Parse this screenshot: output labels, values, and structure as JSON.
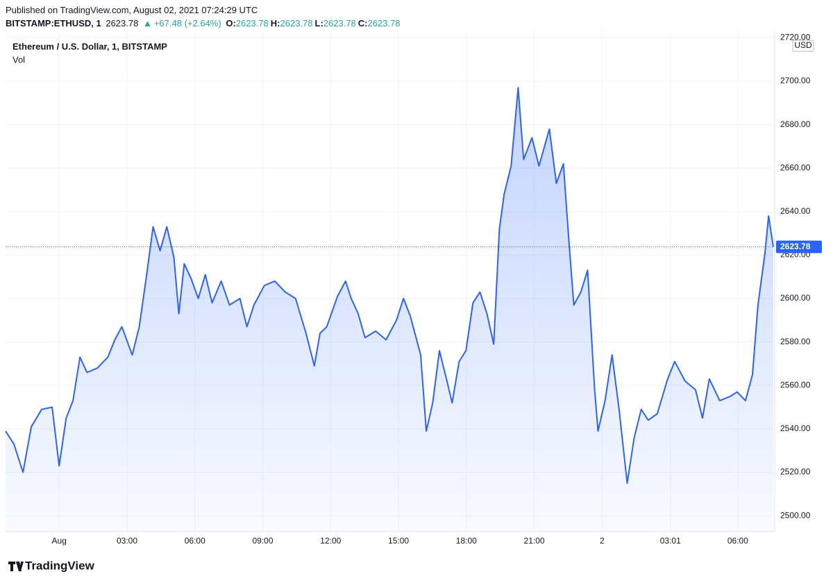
{
  "header": {
    "published": "Published on TradingView.com, August 02, 2021 07:24:29 UTC",
    "symbol": "BITSTAMP:ETHUSD, 1",
    "last": 2623.78,
    "change": "+67.48 (+2.64%)",
    "ohlc": [
      {
        "label": "O:",
        "value": 2623.78
      },
      {
        "label": "H:",
        "value": 2623.78
      },
      {
        "label": "L:",
        "value": 2623.78
      },
      {
        "label": "C:",
        "value": 2623.78
      }
    ]
  },
  "footer": {
    "brand": "TradingView"
  },
  "chart_data": {
    "type": "area",
    "legend": [
      "Ethereum / U.S. Dollar, 1, BITSTAMP",
      "Vol"
    ],
    "currency": "USD",
    "color": "#2962ff",
    "price_line": {
      "value": 2623.78,
      "label": "2623.78"
    },
    "x": [
      -2.37,
      -2.0,
      -1.6,
      -1.23,
      -0.77,
      -0.31,
      0,
      0.31,
      0.61,
      0.92,
      1.23,
      1.69,
      2.15,
      2.46,
      2.77,
      3.23,
      3.54,
      3.84,
      4.15,
      4.46,
      4.76,
      5.07,
      5.29,
      5.53,
      5.84,
      6.15,
      6.46,
      6.76,
      7.16,
      7.53,
      7.99,
      8.3,
      8.61,
      9.07,
      9.53,
      9.99,
      10.45,
      10.91,
      11.28,
      11.53,
      11.83,
      12.3,
      12.66,
      12.91,
      13.22,
      13.52,
      13.99,
      14.45,
      14.91,
      15.22,
      15.52,
      15.98,
      16.23,
      16.51,
      16.81,
      17.12,
      17.37,
      17.68,
      17.98,
      18.29,
      18.6,
      18.91,
      19.21,
      19.46,
      19.67,
      19.98,
      20.29,
      20.53,
      20.9,
      21.21,
      21.67,
      21.98,
      22.29,
      22.53,
      22.75,
      23.06,
      23.36,
      23.67,
      23.82,
      24.13,
      24.44,
      24.75,
      25.11,
      25.42,
      25.73,
      26.04,
      26.44,
      26.9,
      27.21,
      27.67,
      28.13,
      28.44,
      28.74,
      29.2,
      29.67,
      29.97,
      30.34,
      30.65,
      30.89,
      31.2,
      31.36,
      31.57
    ],
    "values": [
      2539,
      2533,
      2520,
      2541,
      2549,
      2550,
      2523,
      2545,
      2553,
      2573,
      2566,
      2568,
      2573,
      2581,
      2587,
      2574,
      2587,
      2609,
      2633,
      2622,
      2633,
      2619,
      2593,
      2616,
      2609,
      2600,
      2611,
      2598,
      2608,
      2597,
      2600,
      2587,
      2597,
      2606,
      2608,
      2603,
      2600,
      2584,
      2569,
      2584,
      2587,
      2601,
      2608,
      2600,
      2593,
      2582,
      2585,
      2581,
      2590,
      2600,
      2592,
      2574,
      2539,
      2552,
      2576,
      2563,
      2552,
      2571,
      2576,
      2598,
      2603,
      2593,
      2579,
      2632,
      2648,
      2661,
      2697,
      2664,
      2674,
      2661,
      2678,
      2653,
      2662,
      2627,
      2597,
      2603,
      2613,
      2558,
      2539,
      2553,
      2574,
      2549,
      2515,
      2536,
      2549,
      2544,
      2547,
      2563,
      2571,
      2562,
      2558,
      2545,
      2563,
      2553,
      2555,
      2557,
      2553,
      2565,
      2597,
      2621,
      2638,
      2623.78
    ],
    "xlim": [
      -2.37,
      31.6
    ],
    "xticks": [
      {
        "value": 0,
        "label": "Aug"
      },
      {
        "value": 3,
        "label": "03:00"
      },
      {
        "value": 6,
        "label": "06:00"
      },
      {
        "value": 9,
        "label": "09:00"
      },
      {
        "value": 12,
        "label": "12:00"
      },
      {
        "value": 15,
        "label": "15:00"
      },
      {
        "value": 18,
        "label": "18:00"
      },
      {
        "value": 21,
        "label": "21:00"
      },
      {
        "value": 24,
        "label": "2"
      },
      {
        "value": 27.02,
        "label": "03:01"
      },
      {
        "value": 30,
        "label": "06:00"
      }
    ],
    "ylim": [
      2493,
      2723
    ],
    "yticks": [
      {
        "value": 2500,
        "label": "2500.00"
      },
      {
        "value": 2520,
        "label": "2520.00"
      },
      {
        "value": 2540,
        "label": "2540.00"
      },
      {
        "value": 2560,
        "label": "2560.00"
      },
      {
        "value": 2580,
        "label": "2580.00"
      },
      {
        "value": 2600,
        "label": "2600.00"
      },
      {
        "value": 2620,
        "label": "2620.00"
      },
      {
        "value": 2640,
        "label": "2640.00"
      },
      {
        "value": 2660,
        "label": "2660.00"
      },
      {
        "value": 2680,
        "label": "2680.00"
      },
      {
        "value": 2700,
        "label": "2700.00"
      },
      {
        "value": 2720,
        "label": "2720.00"
      }
    ],
    "grid": true
  }
}
